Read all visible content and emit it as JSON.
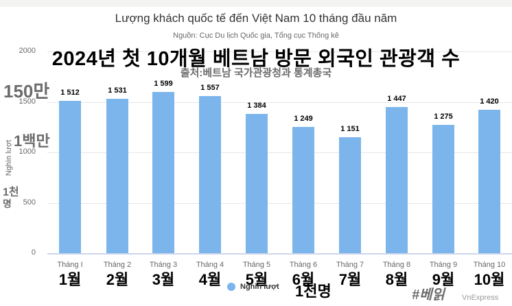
{
  "header": {
    "title": "Lượng khách quốc tế đến Việt Nam 10 tháng đầu năm",
    "subtitle": "Nguồn: Cục Du lịch Quốc gia, Tổng cục Thống kê"
  },
  "overlay": {
    "heading_ko": "2024년 첫 10개월 베트남 방문 외국인 관광객 수",
    "source_ko": "출처:베트남 국가관광청과 통계총국",
    "y_150man": "150만",
    "y_1baekman": "1백만",
    "y_1cheon": "1천",
    "y_myeong": "명",
    "unit_ko": "1천명",
    "hashtag": "#베읽",
    "months_ko": [
      "1월",
      "2월",
      "3월",
      "4월",
      "5월",
      "6월",
      "7월",
      "8월",
      "9월",
      "10월"
    ]
  },
  "footer": {
    "legend_label": "Nghìn lượt",
    "credit": "VnExpress"
  },
  "colors": {
    "bar": "#7cb5ec",
    "grid": "#e6e6e6",
    "baseline": "#ccd6eb",
    "text_axis": "#666666"
  },
  "chart_data": {
    "type": "bar",
    "title": "Lượng khách quốc tế đến Việt Nam 10 tháng đầu năm",
    "subtitle": "Nguồn: Cục Du lịch Quốc gia, Tổng cục Thống kê",
    "categories": [
      "Tháng I",
      "Tháng 2",
      "Tháng 3",
      "Tháng 4",
      "Tháng 5",
      "Tháng 6",
      "Tháng 7",
      "Tháng 8",
      "Tháng 9",
      "Tháng 10"
    ],
    "series": [
      {
        "name": "Nghìn lượt",
        "values": [
          1512,
          1531,
          1599,
          1557,
          1384,
          1249,
          1151,
          1447,
          1275,
          1420
        ]
      }
    ],
    "value_labels": [
      "1 512",
      "1 531",
      "1 599",
      "1 557",
      "1 384",
      "1 249",
      "1 151",
      "1 447",
      "1 275",
      "1 420"
    ],
    "xlabel": "",
    "ylabel": "Nghìn lượt",
    "ylim": [
      0,
      2000
    ],
    "yticks": [
      "0",
      "500",
      "1000",
      "1500",
      "2000"
    ],
    "grid": true,
    "legend_position": "bottom"
  }
}
